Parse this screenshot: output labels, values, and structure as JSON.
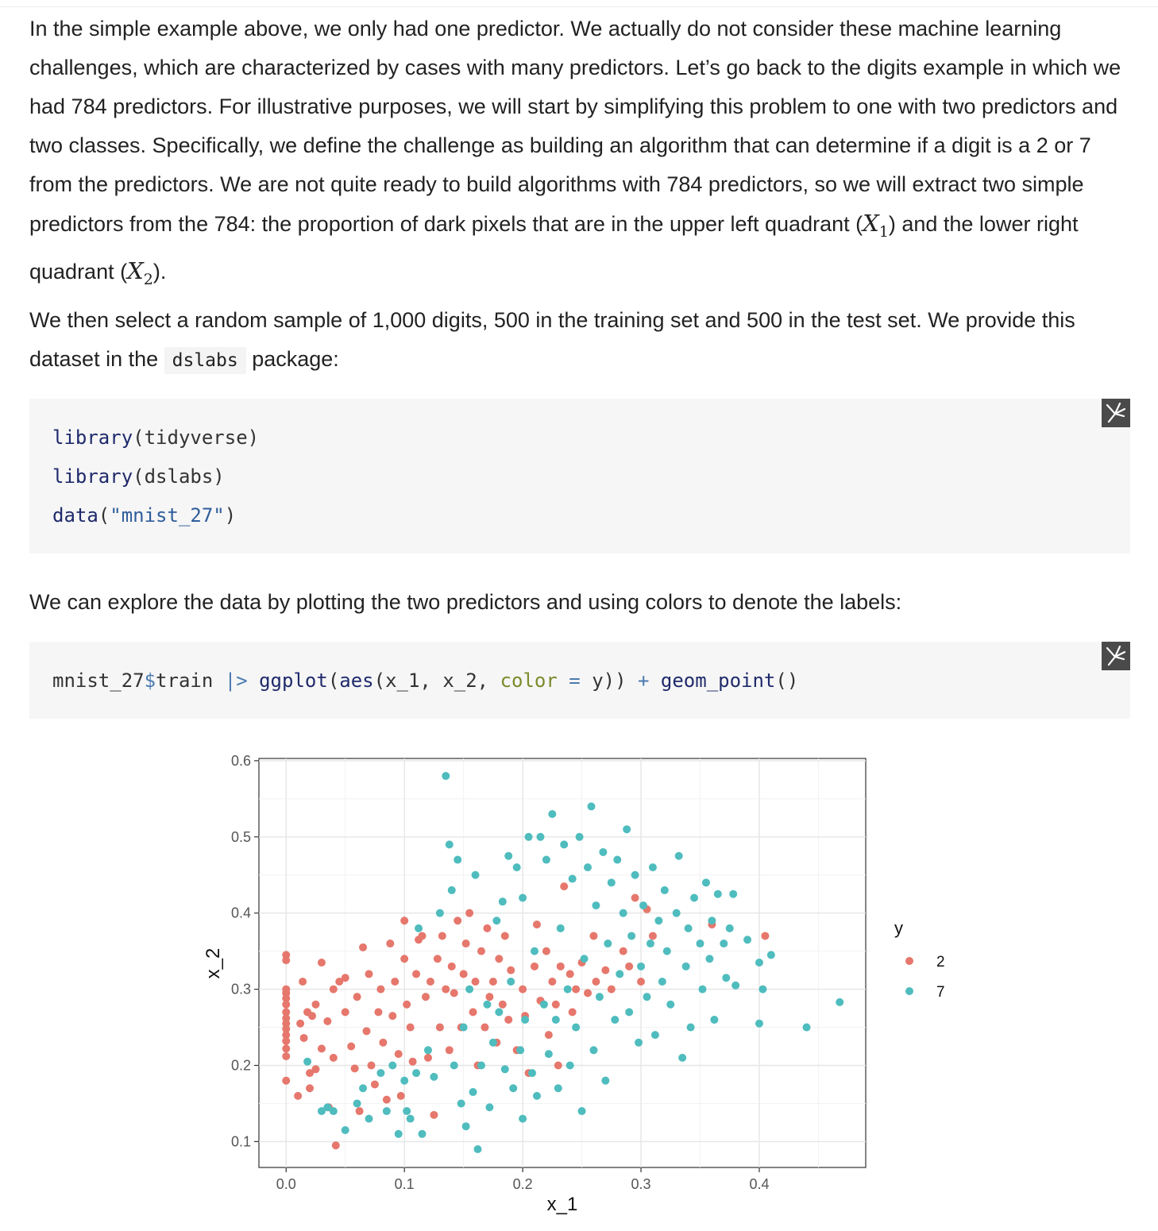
{
  "paragraph1": {
    "text_before_x1": "In the simple example above, we only had one predictor. We actually do not consider these machine learning challenges, which are characterized by cases with many predictors. Let’s go back to the digits example in which we had 784 predictors. For illustrative purposes, we will start by simplifying this problem to one with two predictors and two classes. Specifically, we define the challenge as building an algorithm that can determine if a digit is a 2 or 7 from the predictors. We are not quite ready to build algorithms with 784 predictors, so we will extract two simple predictors from the 784: the proportion of dark pixels that are in the upper left quadrant (",
    "x1_symbol": "X",
    "x1_sub": "1",
    "text_between": ") and the lower right quadrant (",
    "x2_symbol": "X",
    "x2_sub": "2",
    "text_after": ")."
  },
  "paragraph2": {
    "text_before": "We then select a random sample of 1,000 digits, 500 in the training set and 500 in the test set. We provide this dataset in the ",
    "code": "dslabs",
    "text_after": " package:"
  },
  "code_block1": {
    "line1_fn": "library",
    "line1_rest": "(tidyverse)",
    "line2_fn": "library",
    "line2_rest": "(dslabs)",
    "line3_fn": "data",
    "line3_open": "(",
    "line3_str": "\"mnist_27\"",
    "line3_close": ")"
  },
  "paragraph3": "We can explore the data by plotting the two predictors and using colors to denote the labels:",
  "code_block2": {
    "obj": "mnist_27",
    "dollar": "$",
    "field": "train ",
    "pipe": "|>",
    "fn1": "ggplot",
    "open1": "(",
    "fn2": "aes",
    "args": "(x_1, x_2, ",
    "arg_name": "color",
    "eq": " = ",
    "arg_val": "y)) ",
    "plus": "+",
    "fn3": "geom_point",
    "close": "()"
  },
  "copy_icon": "copy-to-clipboard-icon",
  "chart_data": {
    "type": "scatter",
    "title": "",
    "xlabel": "x_1",
    "ylabel": "x_2",
    "xlim": [
      -0.023,
      0.49
    ],
    "ylim": [
      0.066,
      0.603
    ],
    "xticks": [
      "0.0",
      "0.1",
      "0.2",
      "0.3",
      "0.4"
    ],
    "yticks": [
      "0.1",
      "0.2",
      "0.3",
      "0.4",
      "0.5",
      "0.6"
    ],
    "xtick_values": [
      0.0,
      0.1,
      0.2,
      0.3,
      0.4
    ],
    "ytick_values": [
      0.1,
      0.2,
      0.3,
      0.4,
      0.5,
      0.6
    ],
    "grid": true,
    "legend": {
      "title": "y",
      "position": "right"
    },
    "series": [
      {
        "name": "2",
        "color": "#E6776C",
        "points": [
          [
            0.0,
            0.345
          ],
          [
            0.0,
            0.338
          ],
          [
            0.0,
            0.3
          ],
          [
            0.0,
            0.295
          ],
          [
            0.0,
            0.288
          ],
          [
            0.0,
            0.28
          ],
          [
            0.0,
            0.27
          ],
          [
            0.0,
            0.262
          ],
          [
            0.0,
            0.255
          ],
          [
            0.0,
            0.248
          ],
          [
            0.0,
            0.24
          ],
          [
            0.0,
            0.232
          ],
          [
            0.0,
            0.222
          ],
          [
            0.0,
            0.212
          ],
          [
            0.0,
            0.18
          ],
          [
            0.01,
            0.16
          ],
          [
            0.012,
            0.255
          ],
          [
            0.014,
            0.31
          ],
          [
            0.015,
            0.236
          ],
          [
            0.018,
            0.27
          ],
          [
            0.02,
            0.19
          ],
          [
            0.02,
            0.17
          ],
          [
            0.022,
            0.265
          ],
          [
            0.025,
            0.28
          ],
          [
            0.025,
            0.195
          ],
          [
            0.03,
            0.335
          ],
          [
            0.03,
            0.222
          ],
          [
            0.035,
            0.258
          ],
          [
            0.036,
            0.145
          ],
          [
            0.04,
            0.3
          ],
          [
            0.04,
            0.21
          ],
          [
            0.042,
            0.095
          ],
          [
            0.045,
            0.31
          ],
          [
            0.05,
            0.315
          ],
          [
            0.05,
            0.27
          ],
          [
            0.055,
            0.225
          ],
          [
            0.058,
            0.196
          ],
          [
            0.06,
            0.29
          ],
          [
            0.062,
            0.14
          ],
          [
            0.065,
            0.355
          ],
          [
            0.068,
            0.245
          ],
          [
            0.07,
            0.32
          ],
          [
            0.072,
            0.2
          ],
          [
            0.075,
            0.175
          ],
          [
            0.078,
            0.27
          ],
          [
            0.08,
            0.3
          ],
          [
            0.082,
            0.23
          ],
          [
            0.085,
            0.155
          ],
          [
            0.088,
            0.36
          ],
          [
            0.09,
            0.265
          ],
          [
            0.092,
            0.31
          ],
          [
            0.095,
            0.215
          ],
          [
            0.097,
            0.16
          ],
          [
            0.1,
            0.39
          ],
          [
            0.1,
            0.34
          ],
          [
            0.102,
            0.28
          ],
          [
            0.105,
            0.25
          ],
          [
            0.107,
            0.205
          ],
          [
            0.11,
            0.32
          ],
          [
            0.112,
            0.365
          ],
          [
            0.115,
            0.37
          ],
          [
            0.118,
            0.29
          ],
          [
            0.12,
            0.21
          ],
          [
            0.122,
            0.31
          ],
          [
            0.125,
            0.135
          ],
          [
            0.128,
            0.34
          ],
          [
            0.13,
            0.25
          ],
          [
            0.132,
            0.37
          ],
          [
            0.135,
            0.3
          ],
          [
            0.138,
            0.22
          ],
          [
            0.14,
            0.33
          ],
          [
            0.142,
            0.295
          ],
          [
            0.145,
            0.39
          ],
          [
            0.148,
            0.25
          ],
          [
            0.15,
            0.32
          ],
          [
            0.152,
            0.36
          ],
          [
            0.155,
            0.4
          ],
          [
            0.158,
            0.27
          ],
          [
            0.16,
            0.31
          ],
          [
            0.162,
            0.2
          ],
          [
            0.165,
            0.35
          ],
          [
            0.168,
            0.25
          ],
          [
            0.17,
            0.38
          ],
          [
            0.172,
            0.29
          ],
          [
            0.175,
            0.31
          ],
          [
            0.178,
            0.23
          ],
          [
            0.18,
            0.34
          ],
          [
            0.183,
            0.28
          ],
          [
            0.185,
            0.37
          ],
          [
            0.188,
            0.26
          ],
          [
            0.19,
            0.325
          ],
          [
            0.195,
            0.22
          ],
          [
            0.2,
            0.3
          ],
          [
            0.202,
            0.265
          ],
          [
            0.205,
            0.19
          ],
          [
            0.21,
            0.33
          ],
          [
            0.212,
            0.385
          ],
          [
            0.215,
            0.285
          ],
          [
            0.22,
            0.35
          ],
          [
            0.222,
            0.24
          ],
          [
            0.225,
            0.31
          ],
          [
            0.228,
            0.28
          ],
          [
            0.23,
            0.2
          ],
          [
            0.232,
            0.33
          ],
          [
            0.235,
            0.435
          ],
          [
            0.24,
            0.32
          ],
          [
            0.242,
            0.27
          ],
          [
            0.245,
            0.3
          ],
          [
            0.25,
            0.335
          ],
          [
            0.255,
            0.295
          ],
          [
            0.26,
            0.37
          ],
          [
            0.262,
            0.31
          ],
          [
            0.27,
            0.325
          ],
          [
            0.275,
            0.3
          ],
          [
            0.285,
            0.35
          ],
          [
            0.29,
            0.33
          ],
          [
            0.295,
            0.42
          ],
          [
            0.3,
            0.31
          ],
          [
            0.305,
            0.405
          ],
          [
            0.31,
            0.37
          ],
          [
            0.36,
            0.385
          ],
          [
            0.405,
            0.37
          ]
        ]
      },
      {
        "name": "7",
        "color": "#4FBCBE",
        "points": [
          [
            0.018,
            0.205
          ],
          [
            0.03,
            0.14
          ],
          [
            0.035,
            0.145
          ],
          [
            0.04,
            0.14
          ],
          [
            0.05,
            0.115
          ],
          [
            0.06,
            0.15
          ],
          [
            0.065,
            0.17
          ],
          [
            0.07,
            0.13
          ],
          [
            0.08,
            0.19
          ],
          [
            0.085,
            0.14
          ],
          [
            0.09,
            0.2
          ],
          [
            0.095,
            0.11
          ],
          [
            0.1,
            0.18
          ],
          [
            0.102,
            0.14
          ],
          [
            0.105,
            0.13
          ],
          [
            0.11,
            0.19
          ],
          [
            0.112,
            0.38
          ],
          [
            0.115,
            0.11
          ],
          [
            0.12,
            0.22
          ],
          [
            0.125,
            0.185
          ],
          [
            0.13,
            0.4
          ],
          [
            0.135,
            0.58
          ],
          [
            0.138,
            0.49
          ],
          [
            0.14,
            0.43
          ],
          [
            0.142,
            0.2
          ],
          [
            0.145,
            0.47
          ],
          [
            0.148,
            0.15
          ],
          [
            0.15,
            0.25
          ],
          [
            0.152,
            0.12
          ],
          [
            0.155,
            0.3
          ],
          [
            0.158,
            0.165
          ],
          [
            0.16,
            0.45
          ],
          [
            0.162,
            0.09
          ],
          [
            0.165,
            0.2
          ],
          [
            0.17,
            0.28
          ],
          [
            0.172,
            0.145
          ],
          [
            0.175,
            0.23
          ],
          [
            0.178,
            0.39
          ],
          [
            0.18,
            0.27
          ],
          [
            0.183,
            0.415
          ],
          [
            0.185,
            0.195
          ],
          [
            0.188,
            0.475
          ],
          [
            0.19,
            0.31
          ],
          [
            0.192,
            0.17
          ],
          [
            0.195,
            0.46
          ],
          [
            0.198,
            0.22
          ],
          [
            0.2,
            0.42
          ],
          [
            0.2,
            0.13
          ],
          [
            0.202,
            0.26
          ],
          [
            0.205,
            0.5
          ],
          [
            0.208,
            0.19
          ],
          [
            0.21,
            0.35
          ],
          [
            0.212,
            0.16
          ],
          [
            0.215,
            0.5
          ],
          [
            0.218,
            0.28
          ],
          [
            0.22,
            0.47
          ],
          [
            0.222,
            0.215
          ],
          [
            0.225,
            0.53
          ],
          [
            0.228,
            0.26
          ],
          [
            0.23,
            0.17
          ],
          [
            0.232,
            0.38
          ],
          [
            0.235,
            0.49
          ],
          [
            0.238,
            0.3
          ],
          [
            0.24,
            0.2
          ],
          [
            0.242,
            0.445
          ],
          [
            0.245,
            0.25
          ],
          [
            0.248,
            0.5
          ],
          [
            0.25,
            0.14
          ],
          [
            0.252,
            0.34
          ],
          [
            0.255,
            0.46
          ],
          [
            0.258,
            0.54
          ],
          [
            0.26,
            0.22
          ],
          [
            0.262,
            0.41
          ],
          [
            0.265,
            0.29
          ],
          [
            0.268,
            0.48
          ],
          [
            0.27,
            0.18
          ],
          [
            0.272,
            0.36
          ],
          [
            0.275,
            0.44
          ],
          [
            0.278,
            0.26
          ],
          [
            0.28,
            0.47
          ],
          [
            0.282,
            0.32
          ],
          [
            0.285,
            0.4
          ],
          [
            0.288,
            0.51
          ],
          [
            0.29,
            0.27
          ],
          [
            0.292,
            0.37
          ],
          [
            0.295,
            0.45
          ],
          [
            0.298,
            0.23
          ],
          [
            0.3,
            0.33
          ],
          [
            0.302,
            0.41
          ],
          [
            0.305,
            0.29
          ],
          [
            0.308,
            0.36
          ],
          [
            0.31,
            0.46
          ],
          [
            0.312,
            0.24
          ],
          [
            0.315,
            0.39
          ],
          [
            0.318,
            0.31
          ],
          [
            0.32,
            0.43
          ],
          [
            0.322,
            0.35
          ],
          [
            0.325,
            0.28
          ],
          [
            0.33,
            0.4
          ],
          [
            0.332,
            0.475
          ],
          [
            0.335,
            0.21
          ],
          [
            0.338,
            0.33
          ],
          [
            0.34,
            0.38
          ],
          [
            0.342,
            0.25
          ],
          [
            0.345,
            0.42
          ],
          [
            0.35,
            0.36
          ],
          [
            0.352,
            0.3
          ],
          [
            0.355,
            0.44
          ],
          [
            0.358,
            0.34
          ],
          [
            0.36,
            0.39
          ],
          [
            0.362,
            0.26
          ],
          [
            0.365,
            0.425
          ],
          [
            0.37,
            0.36
          ],
          [
            0.372,
            0.315
          ],
          [
            0.375,
            0.38
          ],
          [
            0.378,
            0.425
          ],
          [
            0.38,
            0.305
          ],
          [
            0.39,
            0.365
          ],
          [
            0.4,
            0.335
          ],
          [
            0.4,
            0.255
          ],
          [
            0.403,
            0.3
          ],
          [
            0.41,
            0.345
          ],
          [
            0.44,
            0.25
          ],
          [
            0.468,
            0.283
          ]
        ]
      }
    ]
  }
}
